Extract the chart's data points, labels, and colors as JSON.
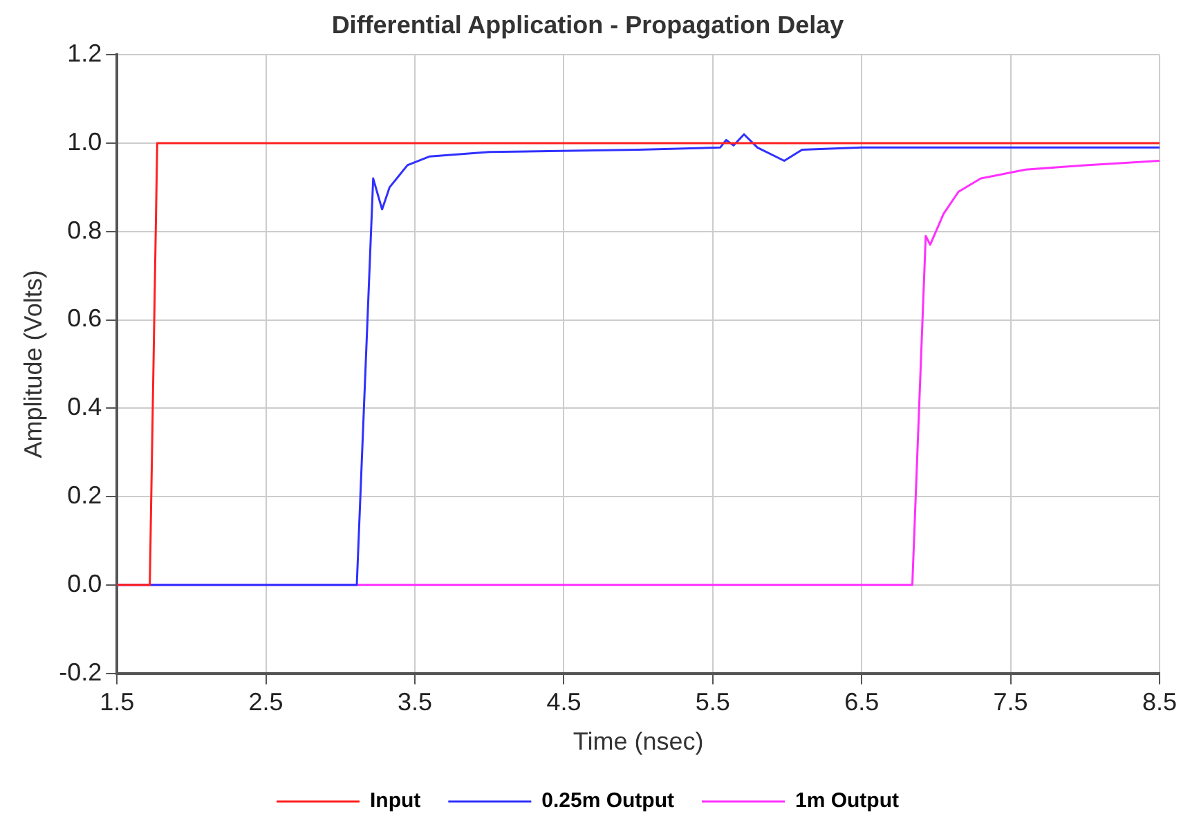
{
  "chart_data": {
    "type": "line",
    "title": "Differential Application - Propagation Delay",
    "xlabel": "Time (nsec)",
    "ylabel": "Amplitude (Volts)",
    "xlim": [
      1.5,
      8.5
    ],
    "xticks": [
      1.5,
      2.5,
      3.5,
      4.5,
      5.5,
      6.5,
      7.5,
      8.5
    ],
    "ylim": [
      -0.2,
      1.2
    ],
    "yticks": [
      {
        "value": -0.2,
        "label": "-0.2"
      },
      {
        "value": 0,
        "label": "0.0"
      },
      {
        "value": 0.2,
        "label": "0.2"
      },
      {
        "value": 0.4,
        "label": "0.4"
      },
      {
        "value": 0.6,
        "label": "0.6"
      },
      {
        "value": 0.8,
        "label": "0.8"
      },
      {
        "value": 1,
        "label": "1.0"
      },
      {
        "value": 1.2,
        "label": "1.2"
      }
    ],
    "grid": true,
    "legend": "bottom",
    "marker": "none",
    "line_style": "solid",
    "series": [
      {
        "name": "Input",
        "color": "#ff2020",
        "x": [
          1.5,
          1.72,
          1.77,
          8.5
        ],
        "values": [
          0,
          0,
          1,
          1
        ]
      },
      {
        "name": "0.25m Output",
        "color": "#3030ff",
        "x": [
          1.5,
          3.11,
          3.22,
          3.28,
          3.33,
          3.45,
          3.6,
          4.0,
          5.0,
          5.55,
          5.59,
          5.64,
          5.71,
          5.8,
          5.98,
          6.1,
          6.5,
          8.5
        ],
        "values": [
          0,
          0,
          0.92,
          0.85,
          0.9,
          0.95,
          0.97,
          0.98,
          0.985,
          0.99,
          1.007,
          0.995,
          1.02,
          0.99,
          0.96,
          0.985,
          0.99,
          0.99
        ]
      },
      {
        "name": "1m Output",
        "color": "#ff30ff",
        "x": [
          1.5,
          6.84,
          6.93,
          6.96,
          7.05,
          7.15,
          7.3,
          7.6,
          8.0,
          8.5
        ],
        "values": [
          0,
          0,
          0.79,
          0.77,
          0.84,
          0.89,
          0.92,
          0.94,
          0.95,
          0.96
        ]
      }
    ]
  }
}
